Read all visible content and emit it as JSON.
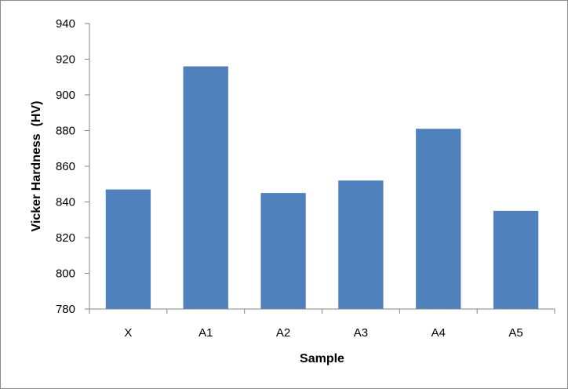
{
  "chart_data": {
    "type": "bar",
    "title": "",
    "xlabel": "Sample",
    "ylabel": "Vicker Hardness  (HV)",
    "categories": [
      "X",
      "A1",
      "A2",
      "A3",
      "A4",
      "A5"
    ],
    "values": [
      847,
      916,
      845,
      852,
      881,
      835
    ],
    "ylim": [
      780,
      940
    ],
    "yticks": [
      780,
      800,
      820,
      840,
      860,
      880,
      900,
      920,
      940
    ],
    "grid": false,
    "legend": "none",
    "bar_color": "#4f81bd",
    "axis_color": "#868686"
  }
}
